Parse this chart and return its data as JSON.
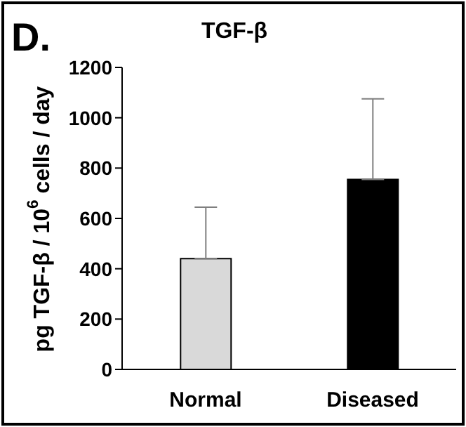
{
  "chart_data": {
    "type": "bar",
    "title": "TGF-β",
    "ylabel": "pg TGF-β / 10$^{6}$ cells / day",
    "annotations": [
      "D."
    ],
    "categories": [
      "Normal",
      "Diseased"
    ],
    "values": [
      440,
      755
    ],
    "colors": [
      "#d9d9d9",
      "#000000"
    ],
    "errors": [
      [
        440,
        645
      ],
      [
        755,
        1075
      ]
    ],
    "ylim": [
      0,
      1200
    ],
    "yticks": [
      0,
      200,
      400,
      600,
      800,
      1000,
      1200
    ],
    "grid": false,
    "legend": false
  }
}
